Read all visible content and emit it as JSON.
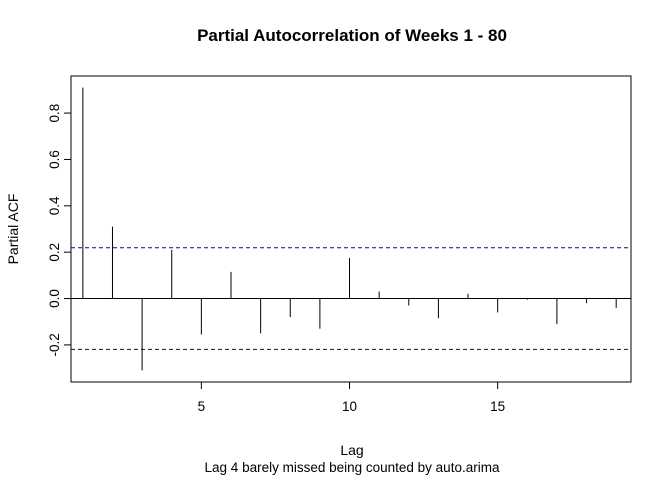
{
  "chart_data": {
    "type": "bar",
    "title": "Partial Autocorrelation of Weeks 1 - 80",
    "xlabel": "Lag",
    "ylabel": "Partial ACF",
    "subtitle": "Lag 4 barely missed being counted by auto.arima",
    "xlim": [
      0.6,
      19.5
    ],
    "ylim": [
      -0.36,
      0.96
    ],
    "x_ticks": [
      5,
      10,
      15
    ],
    "y_ticks": [
      -0.2,
      0.0,
      0.2,
      0.4,
      0.6,
      0.8
    ],
    "y_tick_labels": [
      "-0.2",
      "0.0",
      "0.2",
      "0.4",
      "0.6",
      "0.8"
    ],
    "x_tick_labels": [
      "5",
      "10",
      "15"
    ],
    "lags": [
      1,
      2,
      3,
      4,
      5,
      6,
      7,
      8,
      9,
      10,
      11,
      12,
      13,
      14,
      15,
      16,
      17,
      18,
      19
    ],
    "values": [
      0.91,
      0.31,
      -0.31,
      0.21,
      -0.155,
      0.115,
      -0.15,
      -0.08,
      -0.13,
      0.175,
      0.03,
      -0.03,
      -0.085,
      0.02,
      -0.06,
      -0.005,
      -0.11,
      -0.02,
      -0.04
    ],
    "confidence_limit": 0.219,
    "confidence_color": "#0000cc",
    "bar_color": "#000000",
    "grid": false
  }
}
